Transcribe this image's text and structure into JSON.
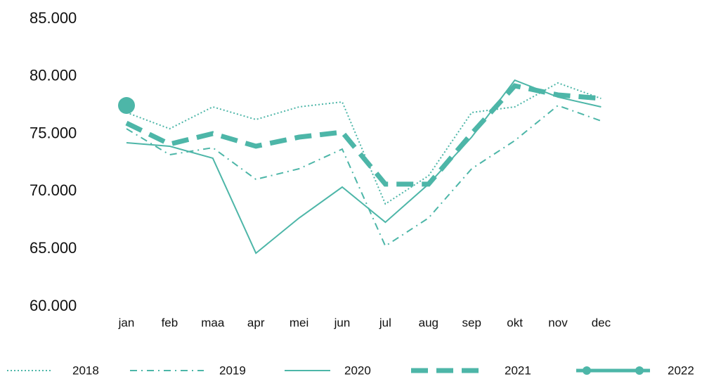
{
  "chart_data": {
    "type": "line",
    "categories": [
      "jan",
      "feb",
      "maa",
      "apr",
      "mei",
      "jun",
      "jul",
      "aug",
      "sep",
      "okt",
      "nov",
      "dec"
    ],
    "ylim": [
      60000,
      85000
    ],
    "yticks": [
      {
        "value": 60000,
        "label": "60.000"
      },
      {
        "value": 65000,
        "label": "65.000"
      },
      {
        "value": 70000,
        "label": "70.000"
      },
      {
        "value": 75000,
        "label": "75.000"
      },
      {
        "value": 80000,
        "label": "80.000"
      },
      {
        "value": 85000,
        "label": "85.000"
      }
    ],
    "grid": false,
    "legend": "bottom",
    "series": [
      {
        "name": "2018",
        "color": "#4db6a8",
        "line_style": "dotted",
        "values": [
          76870,
          75460,
          77360,
          76260,
          77360,
          77790,
          68920,
          71370,
          76870,
          77360,
          79440,
          78090
        ]
      },
      {
        "name": "2019",
        "color": "#4db6a8",
        "line_style": "dashdot",
        "values": [
          75460,
          73200,
          73810,
          71060,
          71980,
          73690,
          65260,
          67700,
          71980,
          74430,
          77480,
          76140
        ]
      },
      {
        "name": "2020",
        "color": "#4db6a8",
        "line_style": "solid",
        "values": [
          74240,
          73940,
          72900,
          64640,
          67700,
          70390,
          67330,
          70640,
          74730,
          79680,
          78210,
          77360
        ]
      },
      {
        "name": "2021",
        "color": "#4db6a8",
        "line_style": "dashed",
        "values": [
          75950,
          74120,
          75040,
          73940,
          74730,
          75160,
          70640,
          70640,
          75040,
          79190,
          78400,
          78090
        ]
      },
      {
        "name": "2022",
        "color": "#4db6a8",
        "line_style": "solid",
        "marker": "circle",
        "values": [
          77480,
          null,
          null,
          null,
          null,
          null,
          null,
          null,
          null,
          null,
          null,
          null
        ]
      }
    ]
  }
}
